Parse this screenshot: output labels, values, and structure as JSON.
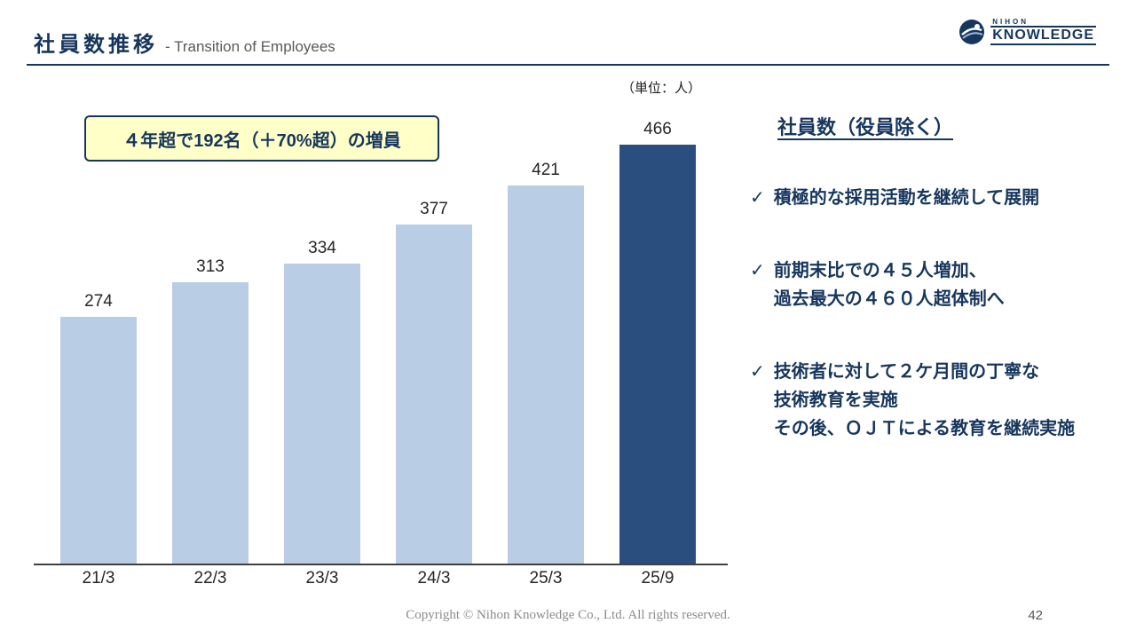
{
  "page": {
    "title_ja": "社員数推移",
    "title_en": "- Transition of Employees",
    "unit_label": "（単位：人）",
    "footer": "Copyright © Nihon Knowledge Co., Ltd. All rights reserved.",
    "page_number": "42"
  },
  "logo": {
    "top": "NIHON",
    "bottom": "KNOWLEDGE"
  },
  "callout": {
    "text": "４年超で192名（＋70%超）の増員"
  },
  "right_panel": {
    "heading": "社員数（役員除く）",
    "check_glyph": "✓",
    "bullets": [
      {
        "lines": [
          "積極的な採用活動を継続して展開"
        ]
      },
      {
        "lines": [
          "前期末比での４５人増加、",
          "過去最大の４６０人超体制へ"
        ]
      },
      {
        "lines": [
          "技術者に対して２ケ月間の丁寧な",
          "技術教育を実施",
          "その後、ＯＪＴによる教育を継続実施"
        ]
      }
    ]
  },
  "chart_data": {
    "type": "bar",
    "title": "社員数推移 - Transition of Employees",
    "unit": "（単位：人）",
    "categories": [
      "21/3",
      "22/3",
      "23/3",
      "24/3",
      "25/3",
      "25/9"
    ],
    "values": [
      274,
      313,
      334,
      377,
      421,
      466
    ],
    "ylim": [
      0,
      480
    ],
    "grid": false,
    "legend": "none",
    "bar_colors": [
      "#b9cde5",
      "#b9cde5",
      "#b9cde5",
      "#b9cde5",
      "#b9cde5",
      "#2a4e7e"
    ],
    "highlight_index": 5
  },
  "colors": {
    "accent_navy": "#17365d",
    "bar_light": "#b9cde5",
    "bar_dark": "#2a4e7e",
    "callout_bg": "#ffffc8"
  }
}
